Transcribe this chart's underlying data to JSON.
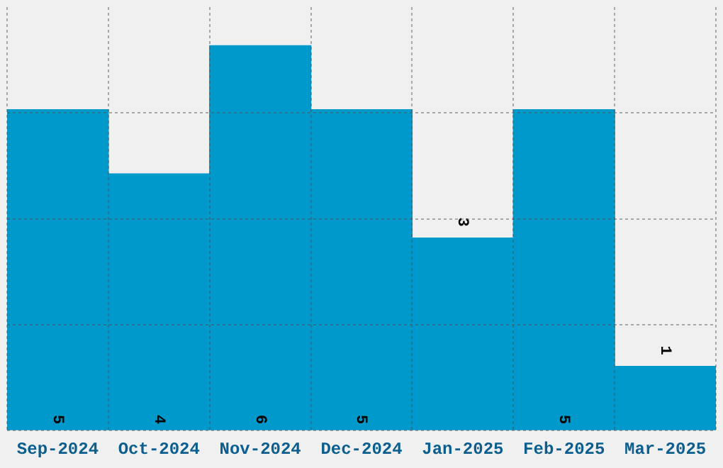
{
  "chart_data": {
    "type": "bar",
    "categories": [
      "Sep-2024",
      "Oct-2024",
      "Nov-2024",
      "Dec-2024",
      "Jan-2025",
      "Feb-2025",
      "Mar-2025"
    ],
    "values": [
      5,
      4,
      6,
      5,
      3,
      5,
      1
    ],
    "color": "#0099cc",
    "data_labels": true,
    "ylim": [
      0,
      6.6
    ],
    "yticks": [
      {
        "value": 0,
        "label": null
      },
      {
        "value": 1.65,
        "label": null
      },
      {
        "value": 3.3,
        "label": null
      },
      {
        "value": 4.95,
        "label": null
      }
    ],
    "grid": true,
    "tick_labels": "x",
    "legend": false
  }
}
